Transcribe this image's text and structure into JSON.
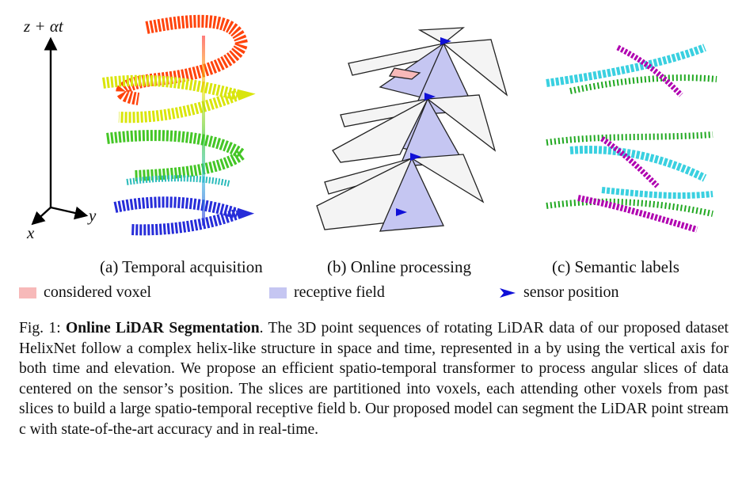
{
  "axes": {
    "vertical": "z + αt",
    "horizontal": "y",
    "depth": "x"
  },
  "panels": [
    {
      "label": "(a) Temporal acquisition"
    },
    {
      "label": "(b) Online processing"
    },
    {
      "label": "(c) Semantic labels"
    }
  ],
  "legend": [
    {
      "label": "considered voxel",
      "color": "#f7b9b9"
    },
    {
      "label": "receptive field",
      "color": "#c5c6f2"
    },
    {
      "label": "sensor position",
      "color": "#1010d8"
    }
  ],
  "caption": {
    "prefix": "Fig. 1: ",
    "title": "Online LiDAR Segmentation",
    "body": ". The 3D point sequences of rotating LiDAR data of our proposed dataset HelixNet follow a complex helix-like structure in space and time, represented in a by using the vertical axis for both time and elevation. We propose an efficient spatio-temporal transformer to process angular slices of data centered on the sensor’s position. The slices are partitioned into voxels, each attending other voxels from past slices to build a large spatio-temporal receptive field b. Our proposed model can segment the LiDAR point stream c with state-of-the-art accuracy and in real-time."
  }
}
